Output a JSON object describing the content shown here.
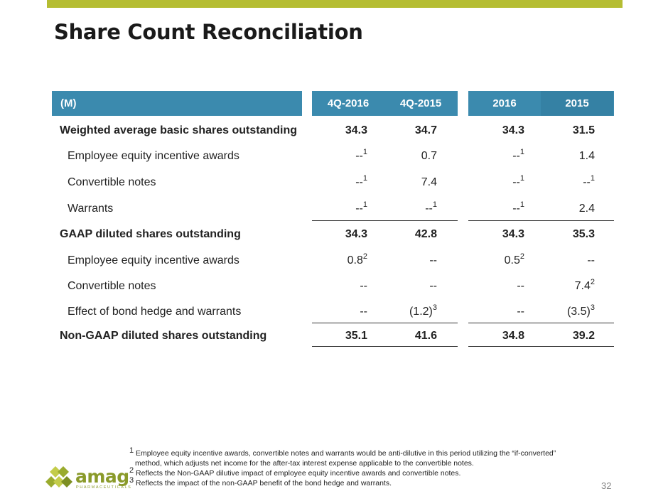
{
  "title": "Share Count Reconciliation",
  "header": {
    "label": "(M)",
    "cols": [
      "4Q-2016",
      "4Q-2015",
      "2016",
      "2015"
    ]
  },
  "rows": [
    {
      "label": "Weighted average basic shares outstanding",
      "v": [
        "34.3",
        "34.7",
        "34.3",
        "31.5"
      ],
      "s": [
        "",
        "",
        "",
        ""
      ]
    },
    {
      "label": "Employee equity incentive awards",
      "v": [
        "--",
        "0.7",
        "--",
        "1.4"
      ],
      "s": [
        "1",
        "",
        "1",
        ""
      ]
    },
    {
      "label": "Convertible notes",
      "v": [
        "--",
        "7.4",
        "--",
        "--"
      ],
      "s": [
        "1",
        "",
        "1",
        "1"
      ]
    },
    {
      "label": "Warrants",
      "v": [
        "--",
        "--",
        "--",
        "2.4"
      ],
      "s": [
        "1",
        "1",
        "1",
        ""
      ]
    },
    {
      "label": "GAAP diluted shares outstanding",
      "v": [
        "34.3",
        "42.8",
        "34.3",
        "35.3"
      ],
      "s": [
        "",
        "",
        "",
        ""
      ]
    },
    {
      "label": "Employee equity incentive awards",
      "v": [
        "0.8",
        "--",
        "0.5",
        "--"
      ],
      "s": [
        "2",
        "",
        "2",
        ""
      ]
    },
    {
      "label": "Convertible notes",
      "v": [
        "--",
        "--",
        "--",
        "7.4"
      ],
      "s": [
        "",
        "",
        "",
        "2"
      ]
    },
    {
      "label": "Effect of bond hedge and warrants",
      "v": [
        "--",
        "(1.2)",
        "--",
        "(3.5)"
      ],
      "s": [
        "",
        "3",
        "",
        "3"
      ]
    },
    {
      "label": "Non-GAAP diluted shares outstanding",
      "v": [
        "35.1",
        "41.6",
        "34.8",
        "39.2"
      ],
      "s": [
        "",
        "",
        "",
        ""
      ]
    }
  ],
  "footnotes": {
    "n1": "1",
    "f1a": "Employee equity incentive awards, convertible notes and warrants would be anti-dilutive in this period utilizing the “if-converted”",
    "f1b": "method, which adjusts net income for the after-tax interest expense applicable to the convertible notes.",
    "n2": "2",
    "f2": "Reflects the Non-GAAP dilutive impact of employee equity incentive awards and convertible notes.",
    "n3": "3",
    "f3": "Reflects the impact of the non-GAAP benefit of the bond hedge and warrants."
  },
  "page_number": "32",
  "logo": {
    "name": "amag",
    "tagline": "PHARMACEUTICALS",
    "icon": "amag-diamond-logo-icon",
    "color": "#8a9a2a"
  },
  "colors": {
    "accent_bar": "#b5bd32",
    "header_blue": "#3b8aae"
  }
}
